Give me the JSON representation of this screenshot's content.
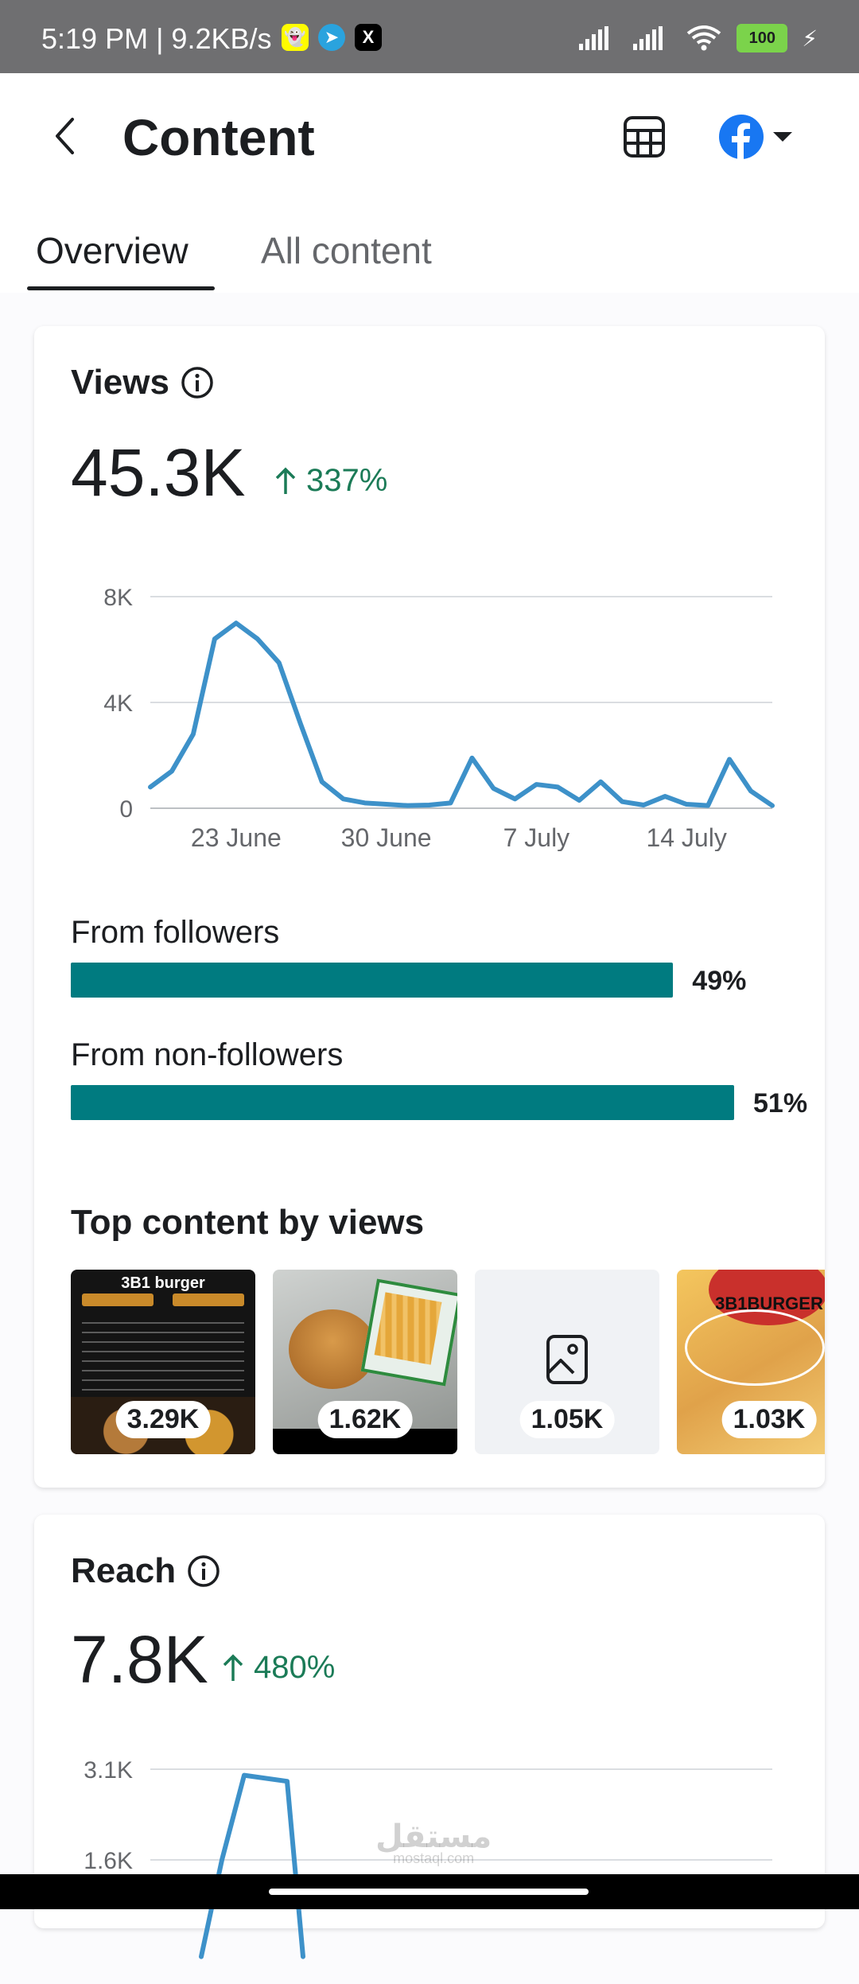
{
  "status_bar": {
    "time_speed": "5:19 PM | 9.2KB/s",
    "apps": [
      "snapchat-icon",
      "telegram-icon",
      "x-icon"
    ],
    "battery": "100"
  },
  "header": {
    "title": "Content",
    "icons": [
      "back-arrow-icon",
      "table-icon",
      "facebook-icon",
      "caret-down-icon"
    ]
  },
  "tabs": [
    {
      "label": "Overview",
      "active": true
    },
    {
      "label": "All content",
      "active": false
    }
  ],
  "views": {
    "title": "Views",
    "total": "45.3K",
    "change": "337%",
    "from_followers_label": "From followers",
    "from_followers_pct": "49%",
    "from_followers_value": 49,
    "from_nonfollowers_label": "From non-followers",
    "from_nonfollowers_pct": "51%",
    "from_nonfollowers_value": 51
  },
  "top_content": {
    "title": "Top content by views",
    "items": [
      {
        "value": "3.29K",
        "header": "3B1 burger"
      },
      {
        "value": "1.62K"
      },
      {
        "value": "1.05K",
        "placeholder_icon": "image-icon"
      },
      {
        "value": "1.03K",
        "header": "3B1BURGER"
      }
    ]
  },
  "reach": {
    "title": "Reach",
    "total": "7.8K",
    "change": "480%"
  },
  "chart_data": [
    {
      "type": "line",
      "x": [
        "19 June",
        "20 June",
        "21 June",
        "22 June",
        "23 June",
        "24 June",
        "25 June",
        "26 June",
        "27 June",
        "28 June",
        "29 June",
        "30 June",
        "1 July",
        "2 July",
        "3 July",
        "4 July",
        "5 July",
        "6 July",
        "7 July",
        "8 July",
        "9 July",
        "10 July",
        "11 July",
        "12 July",
        "13 July",
        "14 July",
        "15 July",
        "16 July",
        "17 July",
        "18 July"
      ],
      "series": [
        {
          "values": [
            800,
            1400,
            2800,
            6400,
            7000,
            6400,
            5500,
            3200,
            1000,
            350,
            200,
            150,
            100,
            120,
            200,
            1900,
            750,
            350,
            900,
            800,
            300,
            1000,
            250,
            120,
            450,
            150,
            100,
            1850,
            650,
            100
          ]
        }
      ],
      "ylim": [
        0,
        8000
      ],
      "y_ticks": [
        "0",
        "4K",
        "8K"
      ],
      "y_tick_values": [
        0,
        4000,
        8000
      ],
      "x_ticks": [
        "23 June",
        "30 June",
        "7 July",
        "14 July"
      ],
      "x_tick_values": [
        "23 June",
        "30 June",
        "7 July",
        "14 July"
      ],
      "color": "#3d91c9",
      "grid": true
    },
    {
      "type": "line",
      "series": [
        {
          "values": [
            0,
            1600,
            3000,
            2900,
            0
          ]
        }
      ],
      "y_ticks": [
        "3.1K",
        "1.6K"
      ],
      "y_tick_values": [
        3100,
        1600
      ],
      "color": "#3d91c9",
      "grid": true,
      "partially_visible": true
    }
  ]
}
